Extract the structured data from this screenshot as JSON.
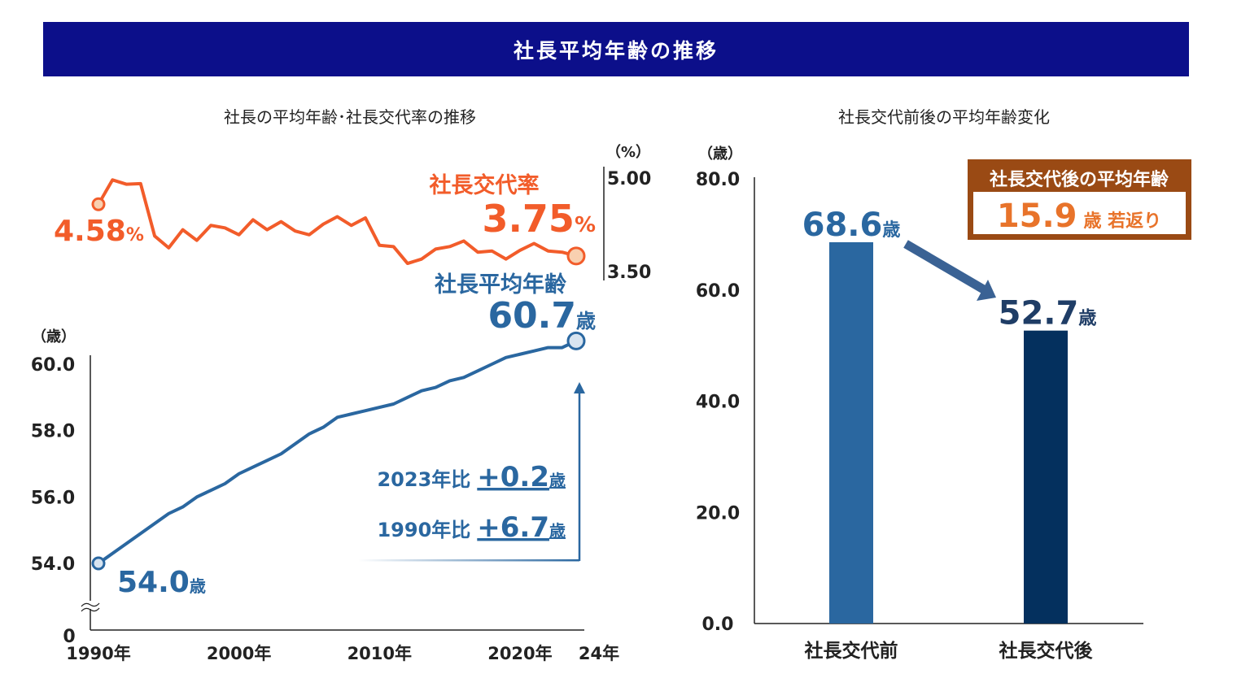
{
  "header": {
    "title": "社長平均年齢の推移"
  },
  "colors": {
    "banner": "#0c0f8a",
    "age_line": "#2a67a0",
    "rate_line": "#f25c2a",
    "bar_before": "#2a67a0",
    "bar_after": "#04305e",
    "callout_border": "#9a4a14",
    "callout_value": "#e8732a"
  },
  "chart_data": [
    {
      "type": "line",
      "title": "社長の平均年齢･社長交代率の推移",
      "x": [
        1990,
        1991,
        1992,
        1993,
        1994,
        1995,
        1996,
        1997,
        1998,
        1999,
        2000,
        2001,
        2002,
        2003,
        2004,
        2005,
        2006,
        2007,
        2008,
        2009,
        2010,
        2011,
        2012,
        2013,
        2014,
        2015,
        2016,
        2017,
        2018,
        2019,
        2020,
        2021,
        2022,
        2023,
        2024
      ],
      "x_tick_labels": [
        "1990年",
        "2000年",
        "2010年",
        "2020年",
        "24年"
      ],
      "series": [
        {
          "name": "社長交代率",
          "axis": "right",
          "unit": "%",
          "values": [
            4.58,
            4.97,
            4.9,
            4.91,
            4.07,
            3.88,
            4.17,
            4.0,
            4.24,
            4.2,
            4.09,
            4.33,
            4.17,
            4.3,
            4.15,
            4.09,
            4.26,
            4.38,
            4.24,
            4.36,
            3.92,
            3.9,
            3.63,
            3.7,
            3.86,
            3.9,
            3.99,
            3.81,
            3.83,
            3.7,
            3.84,
            3.95,
            3.83,
            3.81,
            3.75
          ]
        },
        {
          "name": "社長平均年齢",
          "axis": "left",
          "unit": "歳",
          "values": [
            54.0,
            54.3,
            54.6,
            54.9,
            55.2,
            55.5,
            55.7,
            56.0,
            56.2,
            56.4,
            56.7,
            56.9,
            57.1,
            57.3,
            57.6,
            57.9,
            58.1,
            58.4,
            58.5,
            58.6,
            58.7,
            58.8,
            59.0,
            59.2,
            59.3,
            59.5,
            59.6,
            59.8,
            60.0,
            60.2,
            60.3,
            60.4,
            60.5,
            60.5,
            60.7
          ]
        }
      ],
      "left_axis": {
        "unit": "（歳）",
        "ticks": [
          "60.0",
          "58.0",
          "56.0",
          "54.0",
          "0"
        ],
        "range": [
          54.0,
          60.0
        ],
        "axis_break": true
      },
      "right_axis": {
        "unit": "（%）",
        "ticks": [
          "5.00",
          "3.50"
        ],
        "range": [
          3.5,
          5.0
        ]
      },
      "annotations": {
        "rate_label": "社長交代率",
        "rate_end_value": "3.75",
        "rate_end_unit": "%",
        "rate_start_value": "4.58",
        "rate_start_unit": "%",
        "age_label": "社長平均年齢",
        "age_end_value": "60.7",
        "age_end_unit": "歳",
        "age_start_value": "54.0",
        "age_start_unit": "歳",
        "vs2023_prefix": "2023年比",
        "vs2023_value": "+0.2",
        "vs2023_unit": "歳",
        "vs1990_prefix": "1990年比",
        "vs1990_value": "+6.7",
        "vs1990_unit": "歳"
      },
      "grid": false
    },
    {
      "type": "bar",
      "title": "社長交代前後の平均年齢変化",
      "categories": [
        "社長交代前",
        "社長交代後"
      ],
      "values": [
        68.6,
        52.7
      ],
      "value_labels": [
        "68.6",
        "52.7"
      ],
      "value_unit": "歳",
      "y_unit": "（歳）",
      "y_ticks": [
        "80.0",
        "60.0",
        "40.0",
        "20.0",
        "0.0"
      ],
      "ylim": [
        0,
        80
      ],
      "grid": false,
      "callout": {
        "title": "社長交代後の平均年齢",
        "value": "15.9",
        "text": "歳 若返り"
      }
    }
  ]
}
